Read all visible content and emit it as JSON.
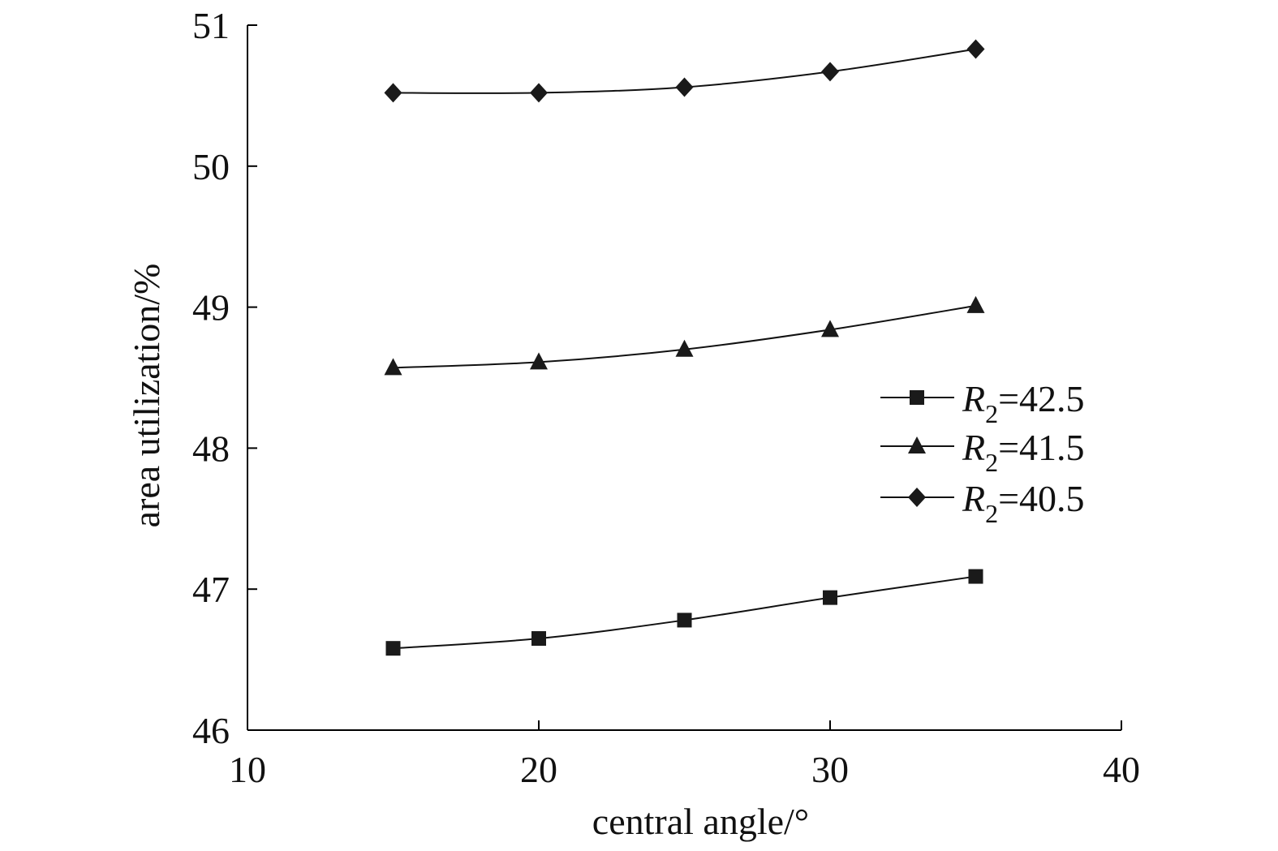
{
  "chart_data": {
    "type": "line",
    "xlabel": "central angle/°",
    "ylabel": "area utilization/%",
    "xlim": [
      10,
      40
    ],
    "ylim": [
      46,
      51
    ],
    "xticks": [
      10,
      20,
      30,
      40
    ],
    "yticks": [
      46,
      47,
      48,
      49,
      50,
      51
    ],
    "grid": false,
    "legend_position": "right",
    "x": [
      15,
      20,
      25,
      30,
      35
    ],
    "series": [
      {
        "name": "R2=42.5",
        "name_main": "R",
        "name_sub": "2",
        "name_rest": "=42.5",
        "marker": "square",
        "values": [
          46.58,
          46.65,
          46.78,
          46.94,
          47.09
        ]
      },
      {
        "name": "R2=41.5",
        "name_main": "R",
        "name_sub": "2",
        "name_rest": "=41.5",
        "marker": "triangle",
        "values": [
          48.57,
          48.61,
          48.7,
          48.84,
          49.01
        ]
      },
      {
        "name": "R2=40.5",
        "name_main": "R",
        "name_sub": "2",
        "name_rest": "=40.5",
        "marker": "diamond",
        "values": [
          50.52,
          50.52,
          50.56,
          50.67,
          50.83
        ]
      }
    ]
  }
}
